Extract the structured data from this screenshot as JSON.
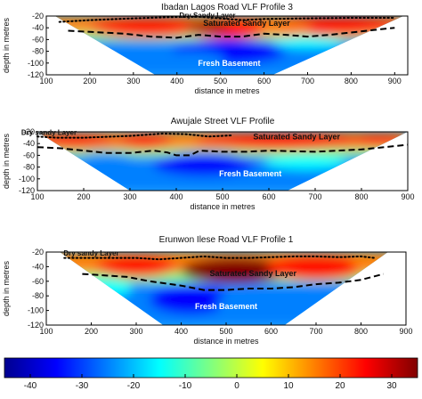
{
  "chart_data": [
    {
      "type": "heatmap",
      "title": "Ibadan Lagos Road VLF Profile 3",
      "xlabel": "distance in metres",
      "ylabel": "depth in metres",
      "xlim": [
        100,
        930
      ],
      "ylim": [
        -120,
        -20
      ],
      "xticks": [
        100,
        200,
        300,
        400,
        500,
        600,
        700,
        800,
        900
      ],
      "yticks": [
        -20,
        -40,
        -60,
        -80,
        -100,
        -120
      ],
      "annotations": [
        "Dry Sandy Layer",
        "Saturated Sandy Layer",
        "Fresh Basement"
      ],
      "section_extent": {
        "top_depth": -20,
        "top_x": [
          120,
          920
        ],
        "bottom_depth": -120,
        "bottom_x": [
          350,
          620
        ]
      },
      "dry_layer_boundary": [
        [
          130,
          -30
        ],
        [
          200,
          -27
        ],
        [
          300,
          -24
        ],
        [
          380,
          -22
        ],
        [
          450,
          -21
        ],
        [
          500,
          -24
        ],
        [
          550,
          -27
        ],
        [
          600,
          -25
        ],
        [
          700,
          -24
        ],
        [
          800,
          -23
        ],
        [
          900,
          -23
        ]
      ],
      "saturated_layer_boundary": [
        [
          150,
          -45
        ],
        [
          200,
          -47
        ],
        [
          280,
          -50
        ],
        [
          340,
          -55
        ],
        [
          400,
          -57
        ],
        [
          450,
          -52
        ],
        [
          500,
          -55
        ],
        [
          550,
          -55
        ],
        [
          600,
          -50
        ],
        [
          650,
          -52
        ],
        [
          700,
          -55
        ],
        [
          750,
          -52
        ],
        [
          800,
          -48
        ],
        [
          850,
          -44
        ],
        [
          900,
          -40
        ]
      ],
      "hotspots": [
        {
          "x": 330,
          "depth": -40,
          "value": 26,
          "rx": 130,
          "ry": 16
        },
        {
          "x": 520,
          "depth": -42,
          "value": 28,
          "rx": 110,
          "ry": 15
        },
        {
          "x": 770,
          "depth": -38,
          "value": 24,
          "rx": 150,
          "ry": 16
        },
        {
          "x": 470,
          "depth": -38,
          "value": 30,
          "rx": 50,
          "ry": 8
        },
        {
          "x": 650,
          "depth": -44,
          "value": 18,
          "rx": 60,
          "ry": 10
        }
      ],
      "coldspots": [
        {
          "x": 520,
          "depth": -80,
          "value": -38,
          "rx": 130,
          "ry": 22
        },
        {
          "x": 430,
          "depth": -95,
          "value": -30,
          "rx": 80,
          "ry": 15
        },
        {
          "x": 700,
          "depth": -65,
          "value": -18,
          "rx": 80,
          "ry": 10
        }
      ]
    },
    {
      "type": "heatmap",
      "title": "Awujale Street VLF Profile",
      "xlabel": "distance in metres",
      "ylabel": "depth in metres",
      "xlim": [
        100,
        900
      ],
      "ylim": [
        -120,
        -20
      ],
      "xticks": [
        100,
        200,
        300,
        400,
        500,
        600,
        700,
        800,
        900
      ],
      "yticks": [
        -20,
        -40,
        -60,
        -80,
        -100,
        -120
      ],
      "annotations": [
        "Dry sandy Layer",
        "Saturated Sandy Layer",
        "Fresh Basement"
      ],
      "section_extent": {
        "top_depth": -20,
        "top_x": [
          100,
          900
        ],
        "bottom_depth": -120,
        "bottom_x": [
          300,
          640
        ]
      },
      "dry_layer_boundary": [
        [
          100,
          -28
        ],
        [
          140,
          -30
        ],
        [
          200,
          -30
        ],
        [
          300,
          -27
        ],
        [
          370,
          -23
        ],
        [
          420,
          -24
        ],
        [
          470,
          -28
        ],
        [
          520,
          -26
        ]
      ],
      "saturated_layer_boundary": [
        [
          100,
          -46
        ],
        [
          150,
          -48
        ],
        [
          200,
          -52
        ],
        [
          250,
          -56
        ],
        [
          300,
          -56
        ],
        [
          350,
          -52
        ],
        [
          380,
          -55
        ],
        [
          400,
          -60
        ],
        [
          430,
          -60
        ],
        [
          450,
          -52
        ],
        [
          500,
          -54
        ],
        [
          550,
          -54
        ],
        [
          600,
          -52
        ],
        [
          700,
          -54
        ],
        [
          800,
          -50
        ],
        [
          850,
          -46
        ],
        [
          900,
          -42
        ]
      ],
      "hotspots": [
        {
          "x": 180,
          "depth": -38,
          "value": 24,
          "rx": 90,
          "ry": 12
        },
        {
          "x": 330,
          "depth": -38,
          "value": 22,
          "rx": 60,
          "ry": 12
        },
        {
          "x": 620,
          "depth": -37,
          "value": 26,
          "rx": 180,
          "ry": 14
        },
        {
          "x": 840,
          "depth": -36,
          "value": 20,
          "rx": 60,
          "ry": 10
        }
      ],
      "coldspots": [
        {
          "x": 460,
          "depth": -75,
          "value": -35,
          "rx": 110,
          "ry": 20
        },
        {
          "x": 250,
          "depth": -70,
          "value": -25,
          "rx": 70,
          "ry": 14
        },
        {
          "x": 680,
          "depth": -72,
          "value": -20,
          "rx": 90,
          "ry": 12
        }
      ]
    },
    {
      "type": "heatmap",
      "title": "Erunwon Ilese Road VLF Profile 1",
      "xlabel": "distance in metres",
      "ylabel": "depth in metres",
      "xlim": [
        100,
        900
      ],
      "ylim": [
        -120,
        -20
      ],
      "xticks": [
        100,
        200,
        300,
        400,
        500,
        600,
        700,
        800,
        900
      ],
      "yticks": [
        -20,
        -40,
        -60,
        -80,
        -100,
        -120
      ],
      "annotations": [
        "Dry sandy Layer",
        "Saturated Sandy Layer",
        "Fresh Basement"
      ],
      "section_extent": {
        "top_depth": -20,
        "top_x": [
          130,
          860
        ],
        "bottom_depth": -120,
        "bottom_x": [
          360,
          630
        ]
      },
      "dry_layer_boundary": [
        [
          140,
          -28
        ],
        [
          200,
          -28
        ],
        [
          300,
          -28
        ],
        [
          350,
          -30
        ],
        [
          400,
          -28
        ],
        [
          450,
          -26
        ],
        [
          500,
          -28
        ],
        [
          550,
          -28
        ],
        [
          600,
          -27
        ],
        [
          650,
          -26
        ],
        [
          700,
          -26
        ],
        [
          750,
          -27
        ],
        [
          800,
          -26
        ],
        [
          830,
          -28
        ]
      ],
      "saturated_layer_boundary": [
        [
          180,
          -50
        ],
        [
          230,
          -52
        ],
        [
          280,
          -54
        ],
        [
          330,
          -60
        ],
        [
          400,
          -66
        ],
        [
          450,
          -72
        ],
        [
          500,
          -72
        ],
        [
          550,
          -70
        ],
        [
          600,
          -70
        ],
        [
          650,
          -68
        ],
        [
          700,
          -64
        ],
        [
          750,
          -62
        ],
        [
          800,
          -58
        ],
        [
          850,
          -50
        ]
      ],
      "hotspots": [
        {
          "x": 300,
          "depth": -40,
          "value": 24,
          "rx": 90,
          "ry": 14
        },
        {
          "x": 520,
          "depth": -45,
          "value": 30,
          "rx": 120,
          "ry": 18
        },
        {
          "x": 700,
          "depth": -42,
          "value": 24,
          "rx": 110,
          "ry": 16
        },
        {
          "x": 820,
          "depth": -36,
          "value": 18,
          "rx": 40,
          "ry": 10
        }
      ],
      "coldspots": [
        {
          "x": 420,
          "depth": -85,
          "value": -38,
          "rx": 90,
          "ry": 20
        },
        {
          "x": 560,
          "depth": -90,
          "value": -30,
          "rx": 80,
          "ry": 18
        },
        {
          "x": 230,
          "depth": -70,
          "value": -18,
          "rx": 60,
          "ry": 12
        }
      ]
    }
  ],
  "colorbar": {
    "min": -45,
    "max": 35,
    "ticks": [
      -40,
      -30,
      -20,
      -10,
      0,
      10,
      20,
      30
    ],
    "colors": [
      "#00008f",
      "#0000ff",
      "#0080ff",
      "#00ffff",
      "#80ff80",
      "#ffff00",
      "#ff8000",
      "#ff0000",
      "#800000"
    ]
  },
  "colors": {
    "dashed_boundary": "#000000",
    "label_text": "#ffffff",
    "frame": "#000000"
  }
}
